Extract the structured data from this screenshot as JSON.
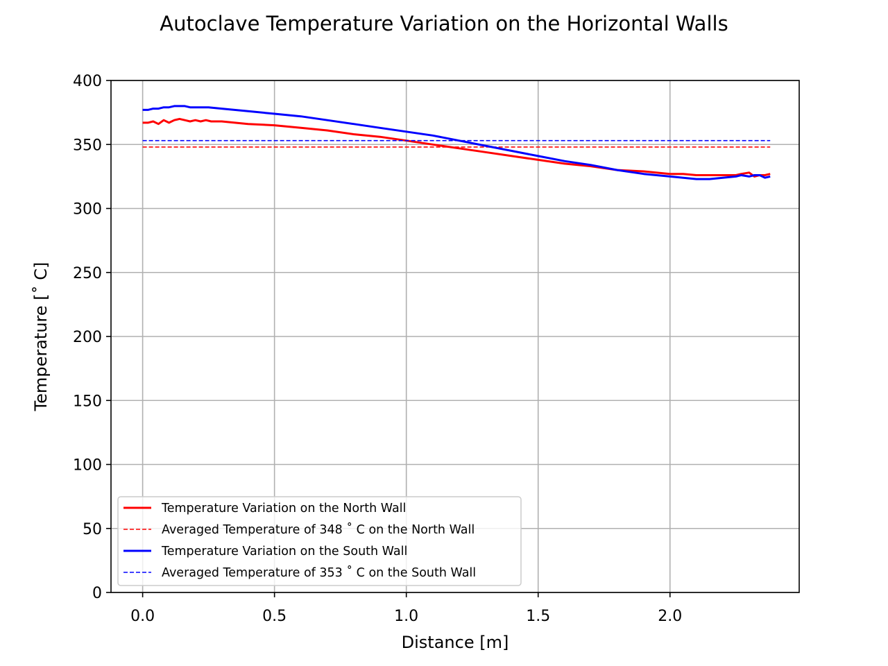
{
  "chart_data": {
    "type": "line",
    "title": "Autoclave Temperature Variation on the Horizontal Walls",
    "xlabel": "Distance [m]",
    "ylabel": "Temperature [˚ C]",
    "xlim": [
      -0.12,
      2.49
    ],
    "ylim": [
      0,
      400
    ],
    "x_ticks": [
      0.0,
      0.5,
      1.0,
      1.5,
      2.0
    ],
    "x_tick_labels": [
      "0.0",
      "0.5",
      "1.0",
      "1.5",
      "2.0"
    ],
    "y_ticks": [
      0,
      50,
      100,
      150,
      200,
      250,
      300,
      350,
      400
    ],
    "y_tick_labels": [
      "0",
      "50",
      "100",
      "150",
      "200",
      "250",
      "300",
      "350",
      "400"
    ],
    "grid": true,
    "legend_position": "lower-left",
    "series": [
      {
        "name": "Temperature Variation on the North Wall",
        "color": "#ff0000",
        "style": "solid",
        "x": [
          0.0,
          0.02,
          0.04,
          0.06,
          0.08,
          0.1,
          0.12,
          0.14,
          0.16,
          0.18,
          0.2,
          0.22,
          0.24,
          0.26,
          0.28,
          0.3,
          0.35,
          0.4,
          0.5,
          0.6,
          0.7,
          0.8,
          0.9,
          1.0,
          1.1,
          1.2,
          1.3,
          1.4,
          1.5,
          1.6,
          1.7,
          1.8,
          1.9,
          2.0,
          2.05,
          2.1,
          2.15,
          2.2,
          2.25,
          2.27,
          2.3,
          2.32,
          2.34,
          2.36,
          2.38
        ],
        "y": [
          367,
          367,
          368,
          366,
          369,
          367,
          369,
          370,
          369,
          368,
          369,
          368,
          369,
          368,
          368,
          368,
          367,
          366,
          365,
          363,
          361,
          358,
          356,
          353,
          350,
          347,
          344,
          341,
          338,
          335,
          333,
          330,
          329,
          327,
          327,
          326,
          326,
          326,
          326,
          327,
          328,
          325,
          326,
          326,
          327
        ]
      },
      {
        "name": "Averaged Temperature of 348 ˚ C on the North Wall",
        "color": "#ff0000",
        "style": "dashed",
        "x": [
          0.0,
          2.38
        ],
        "y": [
          348,
          348
        ]
      },
      {
        "name": "Temperature Variation on the South Wall",
        "color": "#0000ff",
        "style": "solid",
        "x": [
          0.0,
          0.02,
          0.04,
          0.06,
          0.08,
          0.1,
          0.12,
          0.14,
          0.16,
          0.18,
          0.2,
          0.25,
          0.3,
          0.4,
          0.5,
          0.6,
          0.7,
          0.8,
          0.9,
          1.0,
          1.1,
          1.2,
          1.3,
          1.4,
          1.5,
          1.6,
          1.7,
          1.8,
          1.9,
          2.0,
          2.05,
          2.1,
          2.15,
          2.2,
          2.25,
          2.27,
          2.3,
          2.32,
          2.34,
          2.36,
          2.38
        ],
        "y": [
          377,
          377,
          378,
          378,
          379,
          379,
          380,
          380,
          380,
          379,
          379,
          379,
          378,
          376,
          374,
          372,
          369,
          366,
          363,
          360,
          357,
          353,
          349,
          345,
          341,
          337,
          334,
          330,
          327,
          325,
          324,
          323,
          323,
          324,
          325,
          326,
          325,
          326,
          326,
          324,
          325
        ]
      },
      {
        "name": "Averaged Temperature of 353 ˚ C on the South Wall",
        "color": "#0000ff",
        "style": "dashed",
        "x": [
          0.0,
          2.38
        ],
        "y": [
          353,
          353
        ]
      }
    ]
  }
}
